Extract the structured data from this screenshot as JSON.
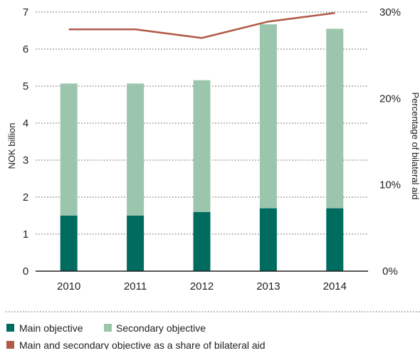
{
  "chart_data": {
    "type": "bar",
    "categories": [
      "2010",
      "2011",
      "2012",
      "2013",
      "2014"
    ],
    "stacked": true,
    "series": [
      {
        "name": "Main objective",
        "kind": "bar",
        "axis": "left",
        "color": "#006b5f",
        "values": [
          1.5,
          1.5,
          1.6,
          1.7,
          1.7
        ]
      },
      {
        "name": "Secondary objective",
        "kind": "bar",
        "axis": "left",
        "color": "#9cc5ae",
        "values": [
          3.57,
          3.57,
          3.56,
          4.97,
          4.85
        ]
      },
      {
        "name": "Main and secondary objective as a share of bilateral aid",
        "kind": "line",
        "axis": "right",
        "color": "#b05a48",
        "values": [
          28.0,
          28.0,
          27.0,
          28.9,
          29.9
        ]
      }
    ],
    "ylabel": "NOK billion",
    "ylim": [
      0,
      7
    ],
    "yticks": [
      "0",
      "1",
      "2",
      "3",
      "4",
      "5",
      "6",
      "7"
    ],
    "y2label": "Percentage of bilateral aid",
    "y2lim": [
      0,
      30
    ],
    "y2ticks": [
      "0%",
      "10%",
      "20%",
      "30%"
    ],
    "grid": true,
    "legend_position": "bottom"
  }
}
